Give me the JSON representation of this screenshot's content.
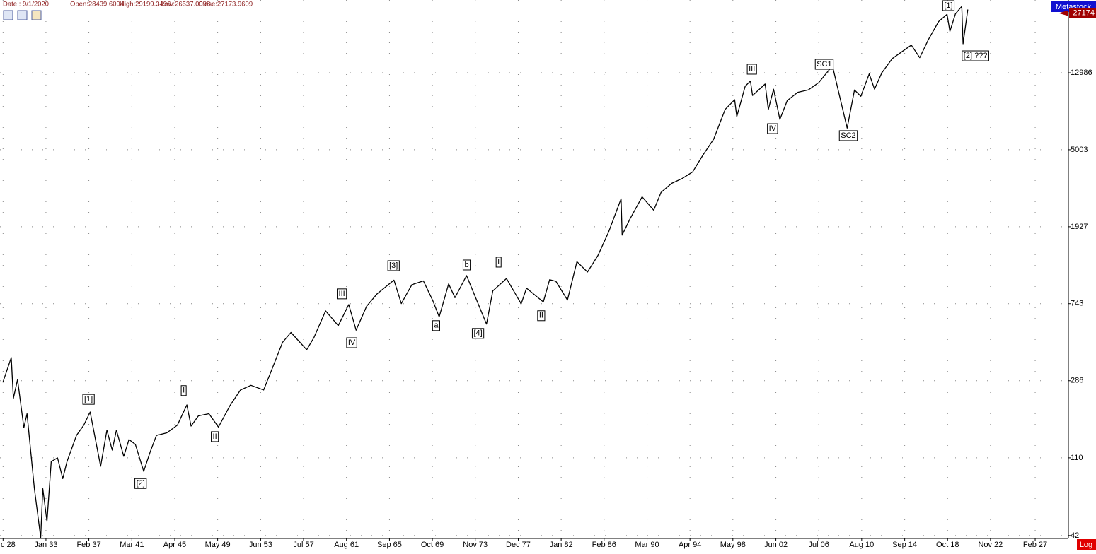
{
  "chart_data": {
    "type": "line",
    "header": [
      "Date : 9/1/2020",
      "Open:28439.6094",
      "High:29199.3496",
      "Low:26537.0098",
      "Close:27173.9609"
    ],
    "brand": "Metastock",
    "scale_button": "Log",
    "log_scale": true,
    "grid": true,
    "color": "#000000",
    "last_price": 27174,
    "x": [
      1928.9,
      1929.7,
      1929.9,
      1930.3,
      1930.9,
      1931.2,
      1931.9,
      1932.5,
      1932.7,
      1933.1,
      1933.5,
      1934.1,
      1934.6,
      1935.0,
      1935.9,
      1936.6,
      1937.2,
      1938.2,
      1938.8,
      1939.3,
      1939.7,
      1940.4,
      1940.9,
      1941.5,
      1942.3,
      1942.9,
      1943.5,
      1944.5,
      1945.5,
      1946.4,
      1946.8,
      1947.5,
      1948.5,
      1949.4,
      1950.5,
      1951.5,
      1952.5,
      1953.7,
      1954.5,
      1955.5,
      1956.3,
      1957.8,
      1958.5,
      1959.6,
      1960.8,
      1961.8,
      1962.5,
      1963.5,
      1964.5,
      1966.1,
      1966.8,
      1967.8,
      1968.9,
      1969.8,
      1970.4,
      1971.3,
      1971.9,
      1973.0,
      1974.9,
      1975.5,
      1976.8,
      1978.2,
      1978.7,
      1980.3,
      1980.9,
      1981.5,
      1982.6,
      1983.5,
      1984.5,
      1985.5,
      1986.5,
      1987.7,
      1987.8,
      1988.5,
      1989.7,
      1990.8,
      1991.5,
      1992.5,
      1993.5,
      1994.5,
      1995.5,
      1996.5,
      1997.6,
      1998.5,
      1998.7,
      1999.5,
      2000.0,
      2000.2,
      2001.4,
      2001.7,
      2002.2,
      2002.8,
      2003.5,
      2004.5,
      2005.5,
      2006.5,
      2007.8,
      2009.2,
      2009.9,
      2010.5,
      2011.3,
      2011.8,
      2012.5,
      2013.5,
      2014.5,
      2015.3,
      2016.1,
      2016.9,
      2017.9,
      2018.7,
      2018.97,
      2019.5,
      2020.1,
      2020.22,
      2020.67
    ],
    "values": [
      280,
      381,
      230,
      290,
      160,
      190,
      75,
      41,
      75,
      50,
      105,
      110,
      85,
      105,
      145,
      165,
      194,
      99,
      155,
      121,
      155,
      112,
      138,
      130,
      93,
      118,
      145,
      150,
      165,
      212,
      163,
      185,
      190,
      161,
      210,
      255,
      270,
      255,
      330,
      460,
      520,
      420,
      490,
      680,
      566,
      735,
      535,
      720,
      840,
      995,
      744,
      940,
      985,
      770,
      631,
      950,
      800,
      1052,
      577,
      870,
      1015,
      742,
      900,
      759,
      1000,
      980,
      777,
      1250,
      1100,
      1350,
      1800,
      2722,
      1738,
      2100,
      2790,
      2365,
      2950,
      3300,
      3500,
      3800,
      4700,
      5700,
      8250,
      9300,
      7539,
      11000,
      11722,
      9800,
      11300,
      8236,
      10600,
      7286,
      9200,
      10200,
      10500,
      11500,
      14164,
      6547,
      10500,
      9700,
      12800,
      10600,
      13000,
      15500,
      17000,
      18300,
      15660,
      19500,
      24500,
      26800,
      21700,
      27000,
      29550,
      18591,
      28430
    ],
    "xlim": [
      1928.63,
      2030.24
    ],
    "ylim": [
      40.5,
      32000
    ],
    "xticks": [
      {
        "value": 1928.92,
        "label": "c 28"
      },
      {
        "value": 1933.0,
        "label": "Jan 33"
      },
      {
        "value": 1937.08,
        "label": "Feb 37"
      },
      {
        "value": 1941.17,
        "label": "Mar 41"
      },
      {
        "value": 1945.25,
        "label": "Apr 45"
      },
      {
        "value": 1949.33,
        "label": "May 49"
      },
      {
        "value": 1953.42,
        "label": "Jun 53"
      },
      {
        "value": 1957.5,
        "label": "Jul 57"
      },
      {
        "value": 1961.58,
        "label": "Aug 61"
      },
      {
        "value": 1965.67,
        "label": "Sep 65"
      },
      {
        "value": 1969.75,
        "label": "Oct 69"
      },
      {
        "value": 1973.83,
        "label": "Nov 73"
      },
      {
        "value": 1977.92,
        "label": "Dec 77"
      },
      {
        "value": 1982.0,
        "label": "Jan 82"
      },
      {
        "value": 1986.08,
        "label": "Feb 86"
      },
      {
        "value": 1990.17,
        "label": "Mar 90"
      },
      {
        "value": 1994.25,
        "label": "Apr 94"
      },
      {
        "value": 1998.33,
        "label": "May 98"
      },
      {
        "value": 2002.42,
        "label": "Jun 02"
      },
      {
        "value": 2006.5,
        "label": "Jul 06"
      },
      {
        "value": 2010.58,
        "label": "Aug 10"
      },
      {
        "value": 2014.67,
        "label": "Sep 14"
      },
      {
        "value": 2018.75,
        "label": "Oct 18"
      },
      {
        "value": 2022.83,
        "label": "Nov 22"
      },
      {
        "value": 2027.08,
        "label": "Feb 27"
      }
    ],
    "yticks": [
      42,
      110,
      286,
      743,
      1927,
      5003,
      12986
    ],
    "annotations": [
      {
        "text": "[1]",
        "x": 1937.05,
        "y": 227
      },
      {
        "text": "[2]",
        "x": 1942.0,
        "y": 80
      },
      {
        "text": "I",
        "x": 1946.1,
        "y": 253
      },
      {
        "text": "II",
        "x": 1949.06,
        "y": 143
      },
      {
        "text": "III",
        "x": 1961.14,
        "y": 839
      },
      {
        "text": "IV",
        "x": 1962.08,
        "y": 458
      },
      {
        "text": "[3]",
        "x": 1966.06,
        "y": 1190
      },
      {
        "text": "a",
        "x": 1970.11,
        "y": 566
      },
      {
        "text": "b",
        "x": 1973.01,
        "y": 1200
      },
      {
        "text": "[4]",
        "x": 1974.09,
        "y": 514
      },
      {
        "text": "I",
        "x": 1976.05,
        "y": 1243
      },
      {
        "text": "II",
        "x": 1980.1,
        "y": 640
      },
      {
        "text": "III",
        "x": 2000.14,
        "y": 13570
      },
      {
        "text": "IV",
        "x": 2002.1,
        "y": 6500
      },
      {
        "text": "SC1",
        "x": 2007.02,
        "y": 14420
      },
      {
        "text": "SC2",
        "x": 2009.31,
        "y": 5960
      },
      {
        "text": "[1]",
        "x": 2018.83,
        "y": 29850
      },
      {
        "text": "[2] ???",
        "x": 2021.4,
        "y": 16020
      }
    ]
  }
}
